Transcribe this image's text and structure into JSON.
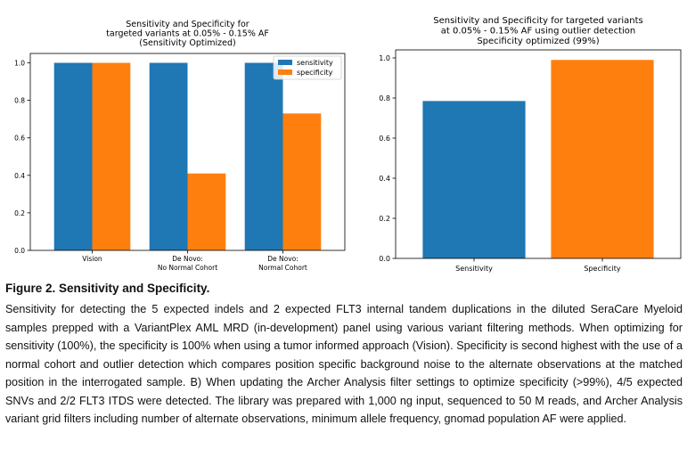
{
  "chart_data": [
    {
      "type": "bar",
      "title_lines": [
        "Sensitivity and Specificity for",
        "targeted variants at 0.05% - 0.15% AF",
        "(Sensitivity Optimized)"
      ],
      "categories": [
        [
          "Vision"
        ],
        [
          "De Novo:",
          "No Normal Cohort"
        ],
        [
          "De Novo:",
          "Normal Cohort"
        ]
      ],
      "series": [
        {
          "name": "sensitivity",
          "color": "#1f77b4",
          "values": [
            1.0,
            1.0,
            1.0
          ]
        },
        {
          "name": "specificity",
          "color": "#ff7f0e",
          "values": [
            1.0,
            0.41,
            0.73
          ]
        }
      ],
      "ylim": [
        0,
        1.05
      ],
      "yticks": [
        "0.0",
        "0.2",
        "0.4",
        "0.6",
        "0.8",
        "1.0"
      ],
      "legend": "top-right",
      "grid": false
    },
    {
      "type": "bar",
      "title_lines": [
        "Sensitivity and Specificity for targeted variants",
        "at 0.05% - 0.15% AF using outlier detection",
        "Specificity optimized (99%)"
      ],
      "categories": [
        [
          "Sensitivity"
        ],
        [
          "Specificity"
        ]
      ],
      "values": [
        0.785,
        0.99
      ],
      "colors": [
        "#1f77b4",
        "#ff7f0e"
      ],
      "ylim": [
        0,
        1.04
      ],
      "yticks": [
        "0.0",
        "0.2",
        "0.4",
        "0.6",
        "0.8",
        "1.0"
      ],
      "grid": false
    }
  ],
  "caption": {
    "title": "Figure 2. Sensitivity and Specificity.",
    "body": "Sensitivity for detecting the 5 expected indels and 2 expected FLT3 internal tandem duplications in the diluted SeraCare Myeloid samples prepped with a VariantPlex AML MRD (in-development) panel using various variant filtering methods. When optimizing for sensitivity (100%), the specificity is 100% when using a tumor informed approach (Vision). Specificity is second highest with the use of a normal cohort and outlier detection which compares position specific background noise to the alternate observations at the matched position in the interrogated sample. B) When updating the Archer Analysis filter settings to optimize specificity (>99%), 4/5 expected SNVs and 2/2 FLT3 ITDS were detected. The library was prepared with 1,000 ng input, sequenced to 50 M reads, and Archer Analysis variant grid filters including number of alternate observations, minimum allele frequency, gnomad population AF were applied."
  }
}
